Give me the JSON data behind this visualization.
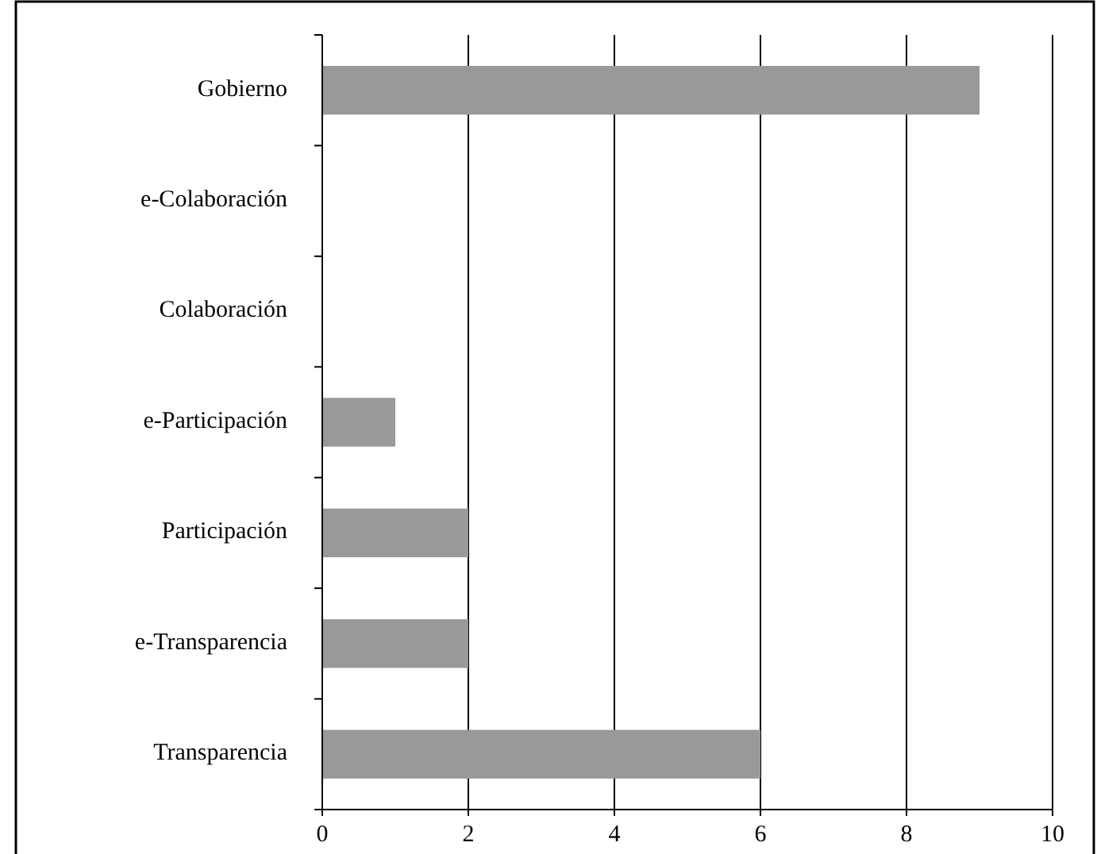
{
  "chart_data": {
    "type": "bar",
    "orientation": "horizontal",
    "categories": [
      "Gobierno",
      "e-Colaboración",
      "Colaboración",
      "e-Participación",
      "Participación",
      "e-Transparencia",
      "Transparencia"
    ],
    "values": [
      9,
      0,
      0,
      1,
      2,
      2,
      6
    ],
    "color": "#999999",
    "xlim": [
      0,
      10
    ],
    "xticks": [
      0,
      2,
      4,
      6,
      8,
      10
    ],
    "grid": "x"
  }
}
